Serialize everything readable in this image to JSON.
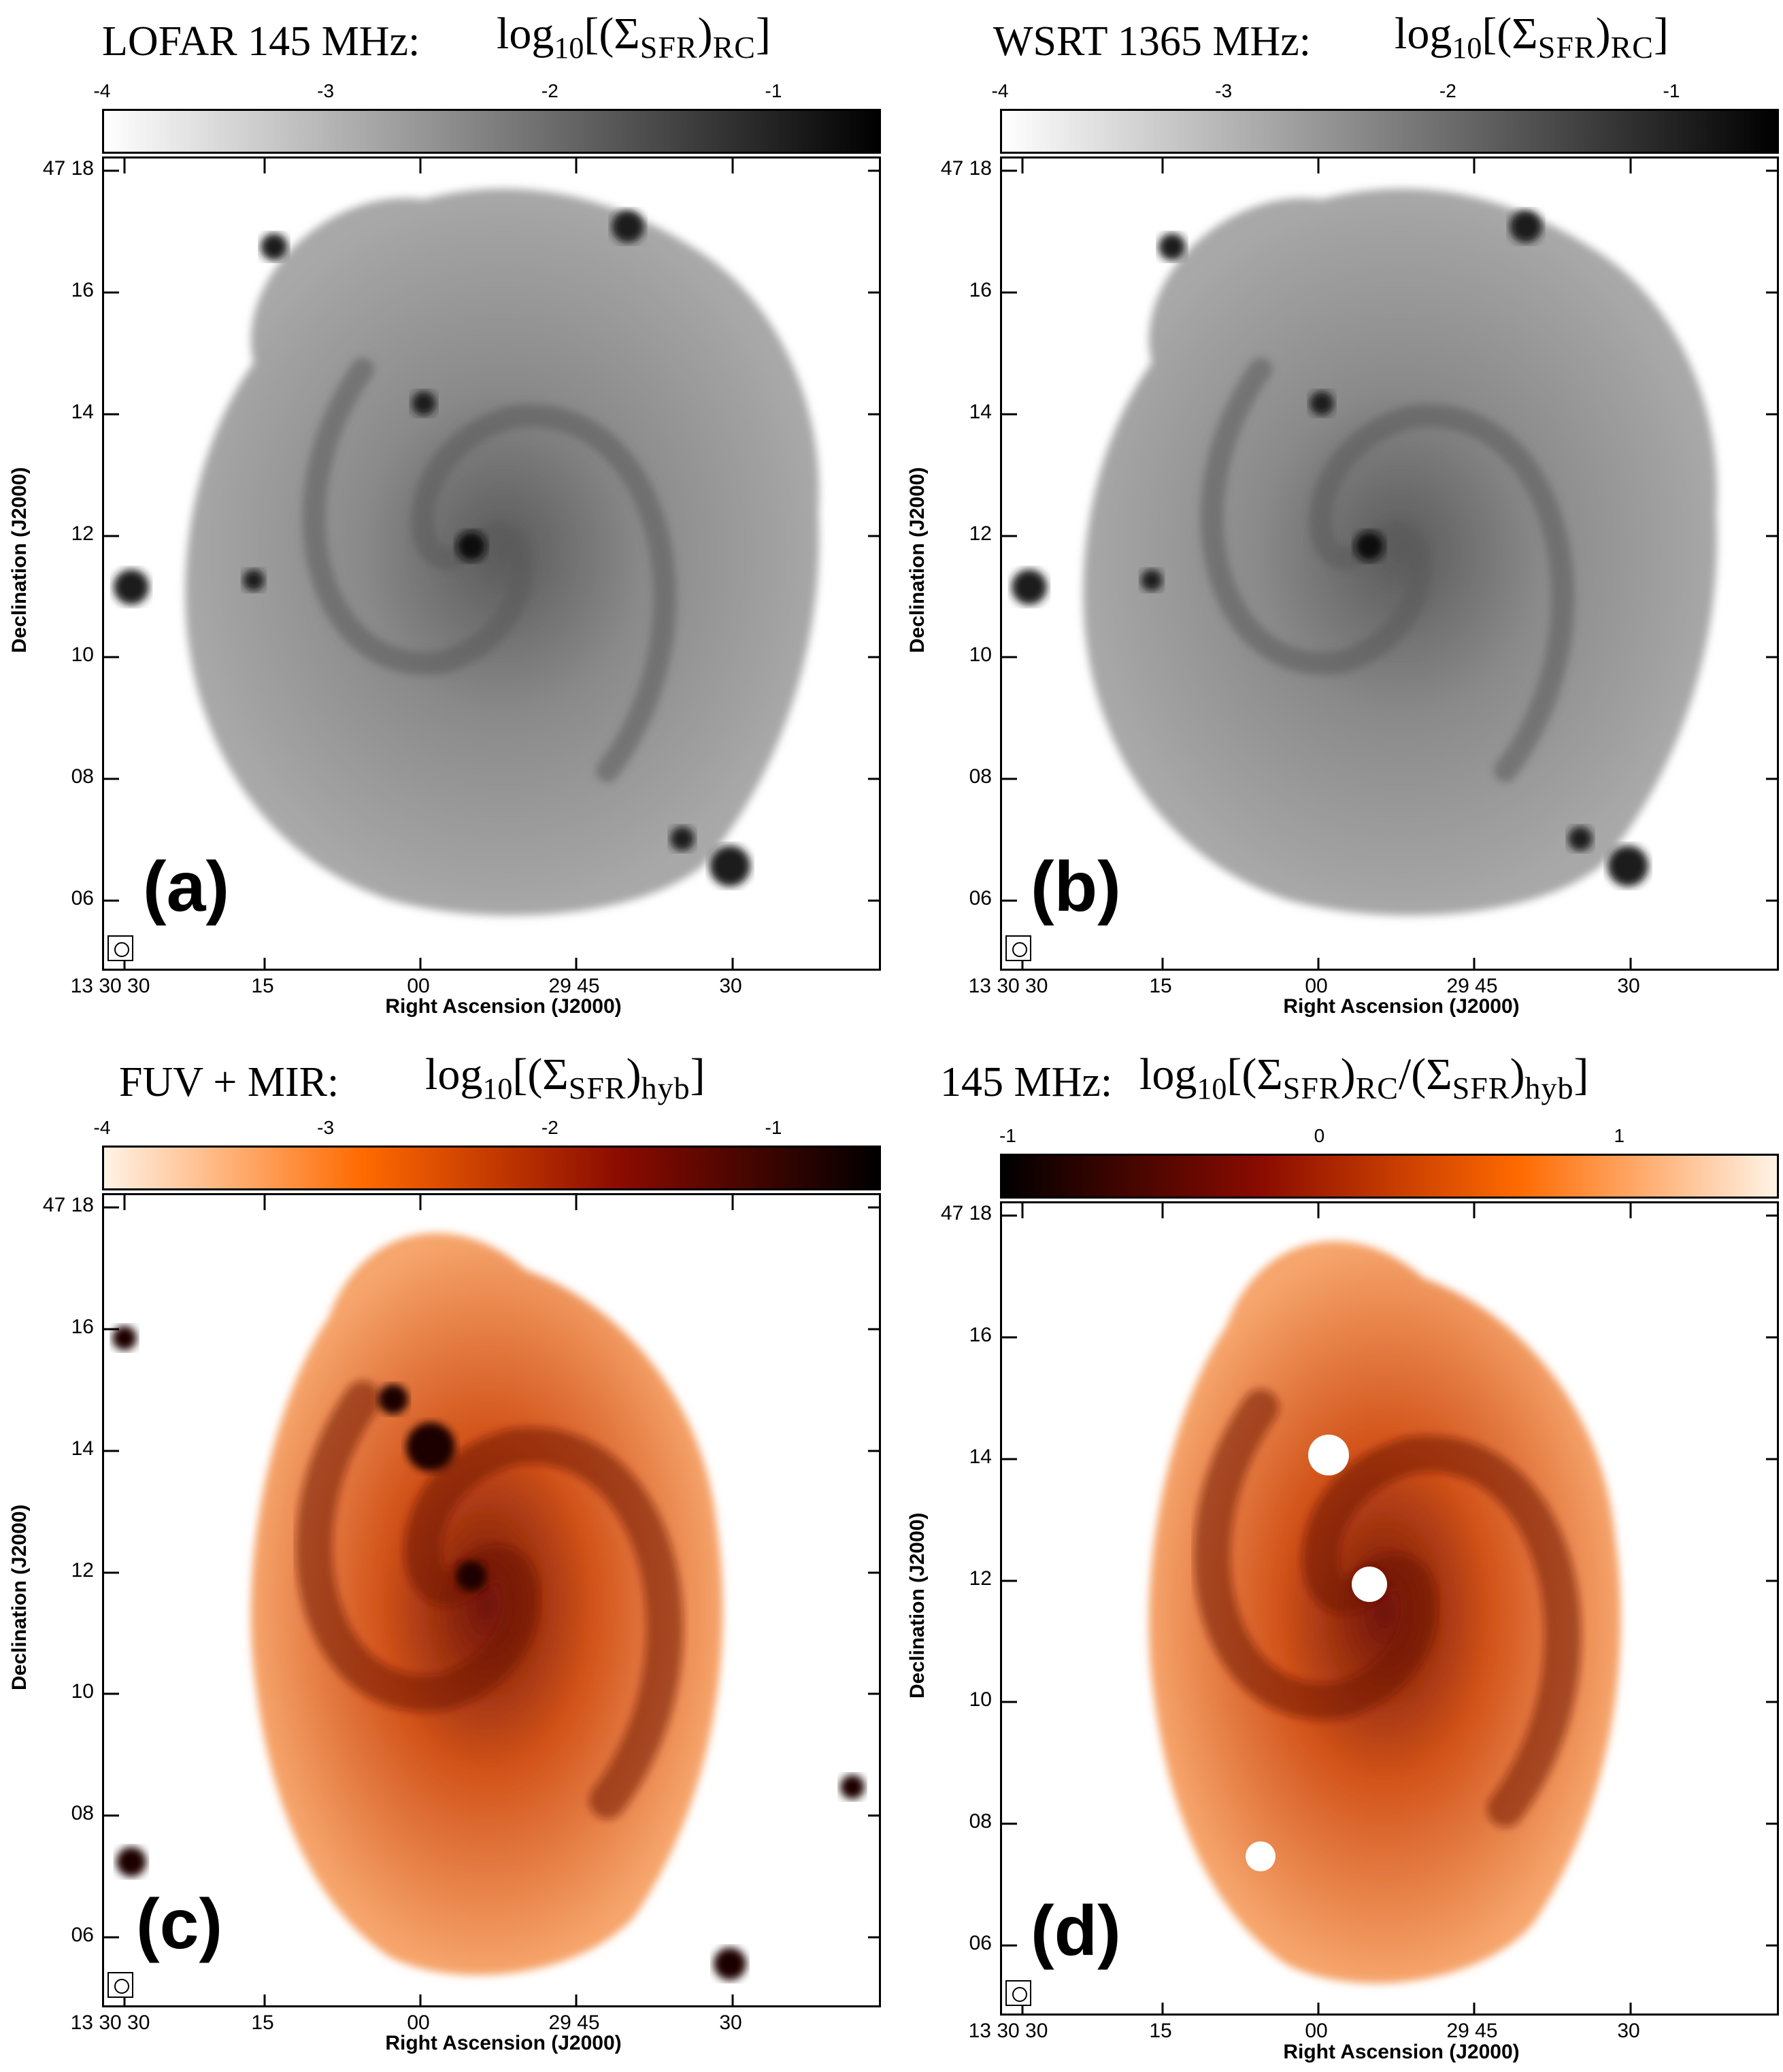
{
  "panels": [
    {
      "id": "a",
      "title_text": "LOFAR 145 MHz:",
      "title_math": {
        "base": "log",
        "sub": "10",
        "quantity": "Σ",
        "qsub": "SFR",
        "suffix": "RC",
        "ratio": ""
      },
      "colorbar": {
        "ticks": [
          "-4",
          "-3",
          "-2",
          "-1"
        ],
        "colors": [
          "#ffffff",
          "#000000"
        ]
      },
      "ylabel": "Declination (J2000)",
      "xlabel": "Right Ascension (J2000)",
      "yticks": [
        "47 18",
        "16",
        "14",
        "12",
        "10",
        "08",
        "06"
      ],
      "xticks": [
        "13 30 30",
        "15",
        "00",
        "29 45",
        "30"
      ],
      "letter": "(a)",
      "palette": "gray"
    },
    {
      "id": "b",
      "title_text": "WSRT 1365 MHz:",
      "title_math": {
        "base": "log",
        "sub": "10",
        "quantity": "Σ",
        "qsub": "SFR",
        "suffix": "RC",
        "ratio": ""
      },
      "colorbar": {
        "ticks": [
          "-4",
          "-3",
          "-2",
          "-1"
        ],
        "colors": [
          "#ffffff",
          "#000000"
        ]
      },
      "ylabel": "Declination (J2000)",
      "xlabel": "Right Ascension (J2000)",
      "yticks": [
        "47 18",
        "16",
        "14",
        "12",
        "10",
        "08",
        "06"
      ],
      "xticks": [
        "13 30 30",
        "15",
        "00",
        "29 45",
        "30"
      ],
      "letter": "(b)",
      "palette": "gray"
    },
    {
      "id": "c",
      "title_text": "FUV + MIR:",
      "title_math": {
        "base": "log",
        "sub": "10",
        "quantity": "Σ",
        "qsub": "SFR",
        "suffix": "hyb",
        "ratio": ""
      },
      "colorbar": {
        "ticks": [
          "-4",
          "-3",
          "-2",
          "-1"
        ],
        "colors": [
          "#fff3e6",
          "#ff6a00",
          "#8a0b00",
          "#000000"
        ]
      },
      "ylabel": "Declination (J2000)",
      "xlabel": "Right Ascension (J2000)",
      "yticks": [
        "47 18",
        "16",
        "14",
        "12",
        "10",
        "08",
        "06"
      ],
      "xticks": [
        "13 30 30",
        "15",
        "00",
        "29 45",
        "30"
      ],
      "letter": "(c)",
      "palette": "orange"
    },
    {
      "id": "d",
      "title_text": "145 MHz:",
      "title_math": {
        "base": "log",
        "sub": "10",
        "quantity": "Σ",
        "qsub": "SFR",
        "suffix": "RC",
        "ratio": "hyb"
      },
      "colorbar": {
        "ticks": [
          "-1",
          "0",
          "1"
        ],
        "colors": [
          "#000000",
          "#8a0b00",
          "#ff6a00",
          "#fff3e6"
        ]
      },
      "ylabel": "Declination (J2000)",
      "xlabel": "Right Ascension (J2000)",
      "yticks": [
        "47 18",
        "16",
        "14",
        "12",
        "10",
        "08",
        "06"
      ],
      "xticks": [
        "13 30 30",
        "15",
        "00",
        "29 45",
        "30"
      ],
      "letter": "(d)",
      "palette": "orange"
    }
  ]
}
